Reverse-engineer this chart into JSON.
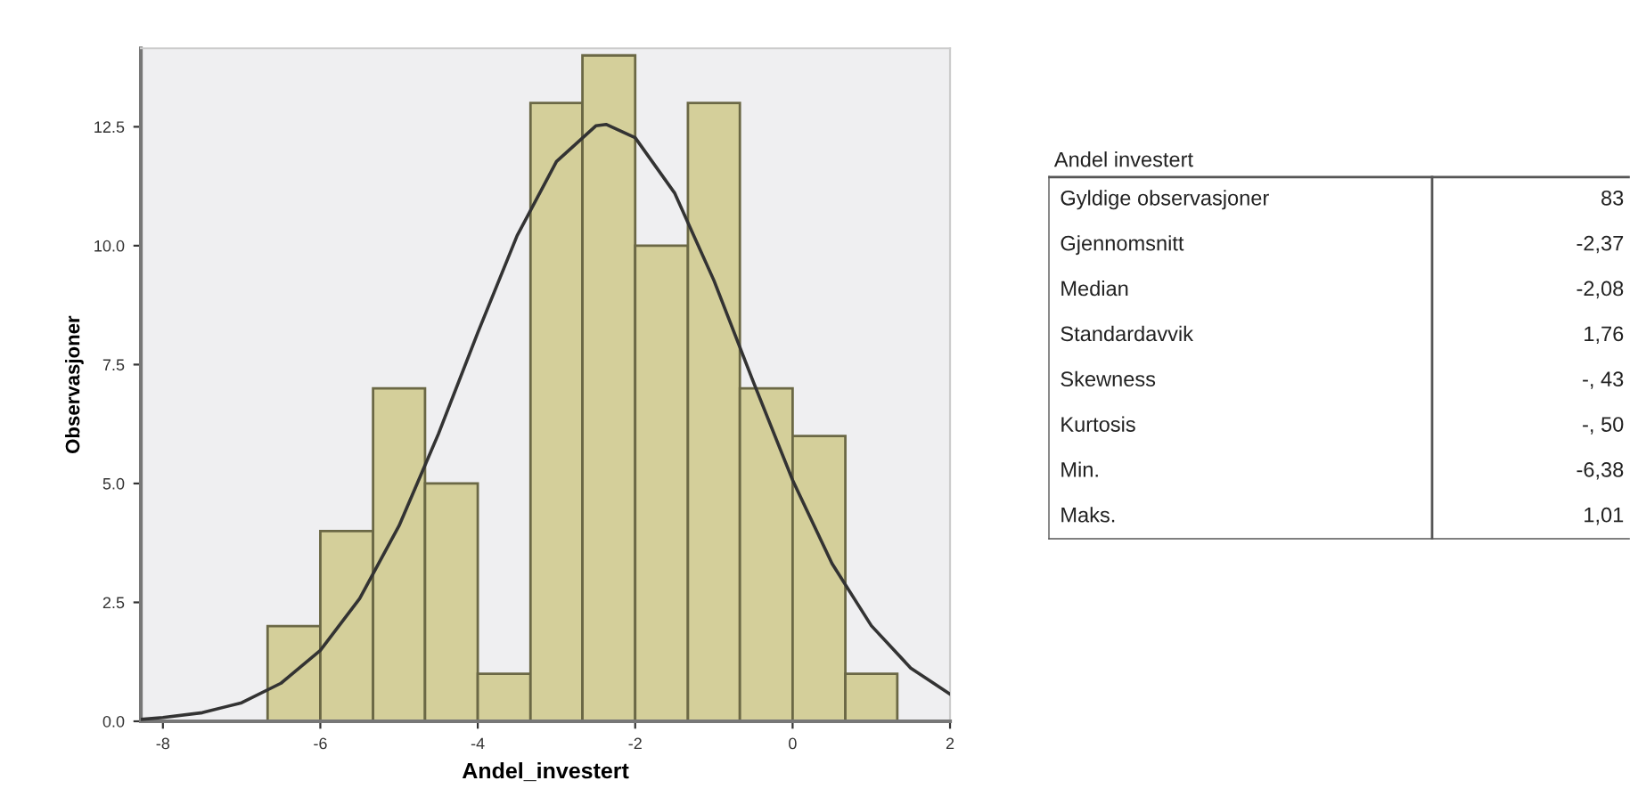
{
  "chart_data": [
    {
      "type": "histogram",
      "xlabel": "Andel_investert",
      "ylabel": "Observasjoner",
      "bins": [
        -6.67,
        -6.0,
        -5.33,
        -4.67,
        -4.0,
        -3.33,
        -2.67,
        -2.0,
        -1.33,
        -0.67,
        0.0,
        0.67,
        1.33
      ],
      "values": [
        2,
        4,
        7,
        5,
        1,
        13,
        14,
        10,
        13,
        7,
        6,
        1
      ],
      "color": "#d4cf9a",
      "series": [
        {
          "type": "line",
          "color": "#333333",
          "x": [
            -8.28,
            -8,
            -7.5,
            -7,
            -6.5,
            -6,
            -5.5,
            -5,
            -4.5,
            -4,
            -3.5,
            -3,
            -2.5,
            -2.37,
            -2,
            -1.5,
            -1,
            -0.5,
            0,
            0.5,
            1,
            1.5,
            2
          ],
          "values": [
            0.04,
            0.08,
            0.18,
            0.39,
            0.8,
            1.49,
            2.58,
            4.11,
            6.04,
            8.17,
            10.21,
            11.77,
            12.52,
            12.55,
            12.27,
            11.11,
            9.27,
            7.14,
            5.07,
            3.32,
            2.01,
            1.12,
            0.57
          ]
        }
      ],
      "xlim": [
        -8.28,
        2.0
      ],
      "xticks": [
        -8,
        -6,
        -4,
        -2,
        0,
        2
      ],
      "ylim": [
        0,
        14.15
      ],
      "yticks": [
        {
          "value": 0,
          "label": "0.0"
        },
        {
          "value": 2.5,
          "label": "2.5"
        },
        {
          "value": 5,
          "label": "5.0"
        },
        {
          "value": 7.5,
          "label": "7.5"
        },
        {
          "value": 10,
          "label": "10.0"
        },
        {
          "value": 12.5,
          "label": "12.5"
        }
      ],
      "grid": false,
      "legend": false
    },
    {
      "type": "other",
      "title": "Andel investert",
      "categories": [
        "Gyldige observasjoner",
        "Gjennomsnitt",
        "Median",
        "Standardavvik",
        "Skewness",
        "Kurtosis",
        "Min.",
        "Maks."
      ],
      "value_labels": [
        "83",
        "-2,37",
        "-2,08",
        "1,76",
        "-, 43",
        "-, 50",
        "-6,38",
        "1,01"
      ]
    }
  ]
}
